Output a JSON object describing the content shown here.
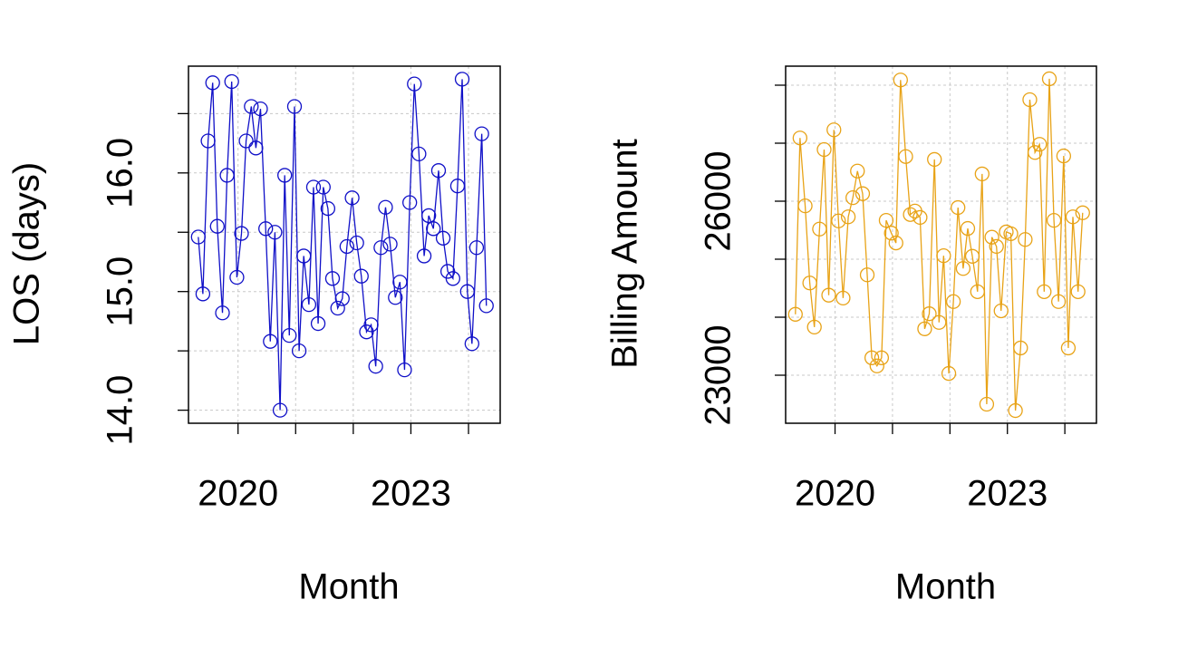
{
  "chart_data": [
    {
      "type": "line",
      "ylabel": "LOS (days)",
      "xlabel": "Month",
      "color": "#1010c8",
      "grid": true,
      "x": [
        2019.31,
        2019.39,
        2019.48,
        2019.56,
        2019.64,
        2019.73,
        2019.81,
        2019.89,
        2019.98,
        2020.06,
        2020.14,
        2020.23,
        2020.31,
        2020.39,
        2020.48,
        2020.56,
        2020.64,
        2020.73,
        2020.81,
        2020.89,
        2020.98,
        2021.06,
        2021.14,
        2021.23,
        2021.31,
        2021.39,
        2021.48,
        2021.56,
        2021.64,
        2021.73,
        2021.81,
        2021.89,
        2021.98,
        2022.06,
        2022.14,
        2022.23,
        2022.31,
        2022.39,
        2022.48,
        2022.56,
        2022.64,
        2022.73,
        2022.81,
        2022.89,
        2022.98,
        2023.06,
        2023.14,
        2023.23,
        2023.31,
        2023.39,
        2023.48,
        2023.56,
        2023.64,
        2023.73,
        2023.81,
        2023.89,
        2023.98,
        2024.06,
        2024.14,
        2024.23,
        2024.31
      ],
      "values": [
        15.46,
        14.98,
        16.27,
        16.76,
        15.55,
        14.82,
        15.98,
        16.77,
        15.12,
        15.49,
        16.27,
        16.56,
        16.21,
        16.54,
        15.53,
        14.58,
        15.5,
        14.0,
        15.98,
        14.63,
        16.56,
        14.5,
        15.3,
        14.89,
        15.88,
        14.73,
        15.88,
        15.7,
        15.11,
        14.86,
        14.94,
        15.38,
        15.79,
        15.41,
        15.13,
        14.66,
        14.72,
        14.37,
        15.37,
        15.71,
        15.4,
        14.95,
        15.08,
        14.34,
        15.75,
        16.75,
        16.16,
        15.3,
        15.64,
        15.53,
        16.02,
        15.45,
        15.17,
        15.11,
        15.89,
        16.79,
        15.0,
        14.56,
        15.37,
        16.33,
        14.88
      ],
      "xlim": [
        2019.14,
        2024.55
      ],
      "xticks": [
        2020,
        {
          "value": 2021,
          "label": null
        },
        {
          "value": 2022,
          "label": null
        },
        2023,
        {
          "value": 2024,
          "label": null
        }
      ],
      "ylim": [
        13.89,
        16.9
      ],
      "yticks": [
        {
          "value": 14,
          "label": "14.0"
        },
        {
          "value": 14.5,
          "label": null
        },
        {
          "value": 15,
          "label": "15.0"
        },
        {
          "value": 15.5,
          "label": null
        },
        {
          "value": 16,
          "label": "16.0"
        },
        {
          "value": 16.5,
          "label": null
        }
      ]
    },
    {
      "type": "line",
      "ylabel": "Billing Amount",
      "xlabel": "Month",
      "color": "#e8a317",
      "grid": true,
      "x": [
        2019.31,
        2019.39,
        2019.48,
        2019.56,
        2019.64,
        2019.73,
        2019.81,
        2019.89,
        2019.98,
        2020.06,
        2020.14,
        2020.23,
        2020.31,
        2020.39,
        2020.48,
        2020.56,
        2020.64,
        2020.73,
        2020.81,
        2020.89,
        2020.98,
        2021.06,
        2021.14,
        2021.23,
        2021.31,
        2021.39,
        2021.48,
        2021.56,
        2021.64,
        2021.73,
        2021.81,
        2021.89,
        2021.98,
        2022.06,
        2022.14,
        2022.23,
        2022.31,
        2022.39,
        2022.48,
        2022.56,
        2022.64,
        2022.73,
        2022.81,
        2022.89,
        2022.98,
        2023.06,
        2023.14,
        2023.23,
        2023.31,
        2023.39,
        2023.48,
        2023.56,
        2023.64,
        2023.73,
        2023.81,
        2023.89,
        2023.98,
        2024.06,
        2024.14,
        2024.23,
        2024.31
      ],
      "values": [
        24050,
        27090,
        25920,
        24590,
        23830,
        25520,
        26890,
        24380,
        27230,
        25660,
        24330,
        25730,
        26060,
        26520,
        26130,
        24730,
        23300,
        23160,
        23300,
        25670,
        25450,
        25280,
        28090,
        26770,
        25770,
        25830,
        25720,
        23800,
        24060,
        26720,
        23910,
        25060,
        23030,
        24270,
        25890,
        24840,
        25530,
        25050,
        24440,
        26470,
        22500,
        25380,
        25220,
        24110,
        25470,
        25440,
        22390,
        23470,
        25340,
        27750,
        26840,
        26980,
        24440,
        28110,
        25670,
        24270,
        26780,
        23470,
        25730,
        24440,
        25800
      ],
      "xlim": [
        2019.14,
        2024.55
      ],
      "xticks": [
        2020,
        {
          "value": 2021,
          "label": null
        },
        {
          "value": 2022,
          "label": null
        },
        2023,
        {
          "value": 2024,
          "label": null
        }
      ],
      "ylim": [
        22172,
        28328
      ],
      "yticks": [
        23000,
        {
          "value": 24000,
          "label": null
        },
        {
          "value": 25000,
          "label": null
        },
        26000,
        {
          "value": 27000,
          "label": null
        },
        {
          "value": 28000,
          "label": null
        }
      ]
    }
  ]
}
